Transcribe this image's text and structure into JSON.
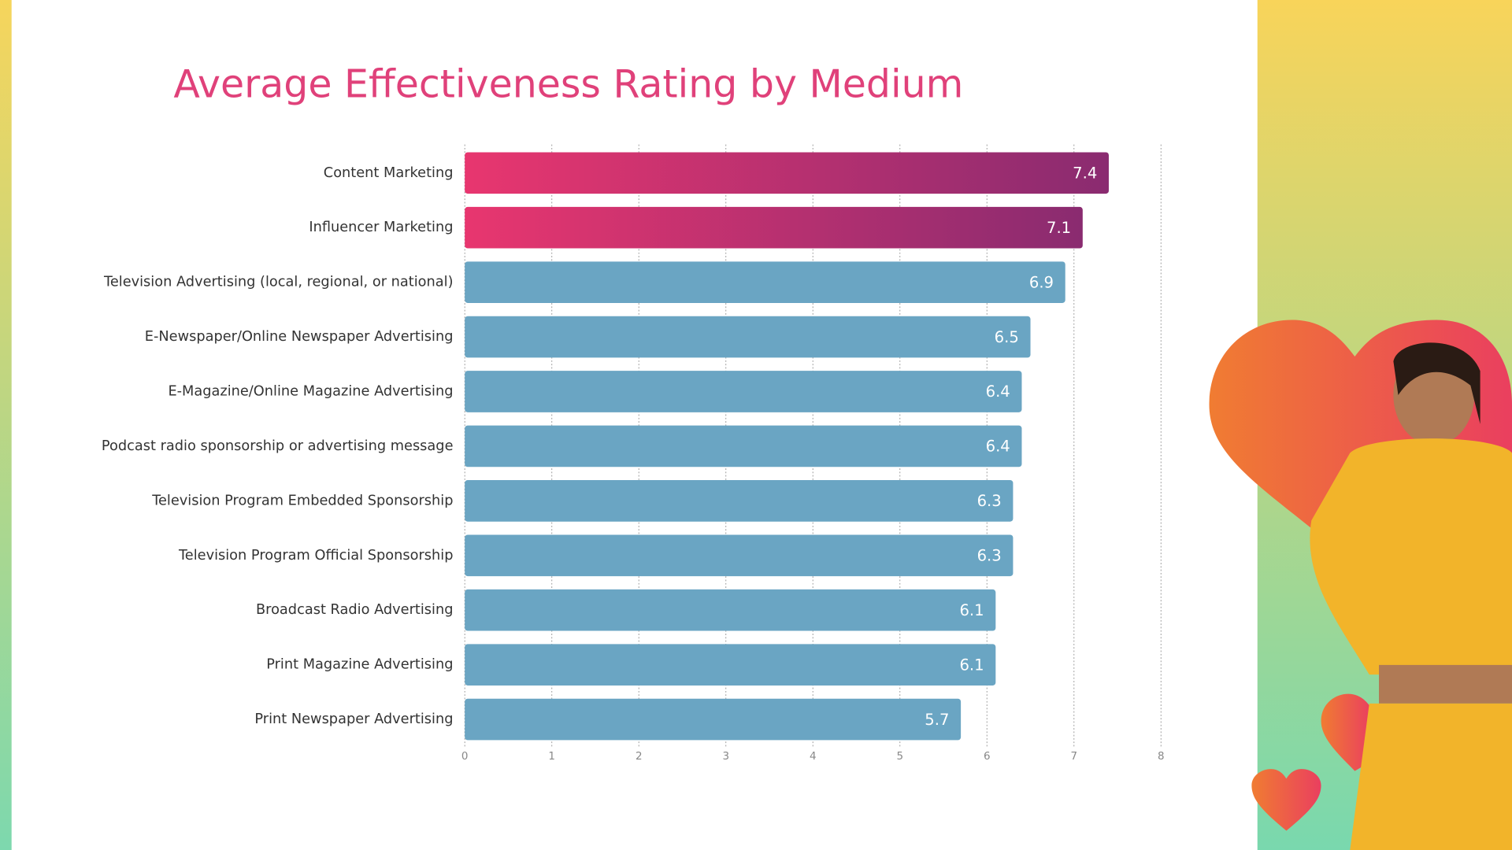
{
  "chart_data": {
    "type": "barh",
    "title": "Average Effectiveness Rating by Medium",
    "categories": [
      "Content Marketing",
      "Influencer Marketing",
      "Television Advertising (local, regional, or national)",
      "E-Newspaper/Online Newspaper Advertising",
      "E-Magazine/Online Magazine Advertising",
      "Podcast radio sponsorship or advertising message",
      "Television Program Embedded Sponsorship",
      "Television Program Official Sponsorship",
      "Broadcast Radio Advertising",
      "Print Magazine Advertising",
      "Print Newspaper Advertising"
    ],
    "values": [
      7.4,
      7.1,
      6.9,
      6.5,
      6.4,
      6.4,
      6.3,
      6.3,
      6.1,
      6.1,
      5.7
    ],
    "colors": [
      [
        "#e8366f",
        "#8a2b70"
      ],
      [
        "#e8366f",
        "#8a2b70"
      ],
      "#6aa5c3",
      "#6aa5c3",
      "#6aa5c3",
      "#6aa5c3",
      "#6aa5c3",
      "#6aa5c3",
      "#6aa5c3",
      "#6aa5c3",
      "#6aa5c3"
    ],
    "xlim": [
      0,
      8
    ],
    "xticks": [
      0,
      1,
      2,
      3,
      4,
      5,
      6,
      7,
      8
    ],
    "grid": true
  }
}
